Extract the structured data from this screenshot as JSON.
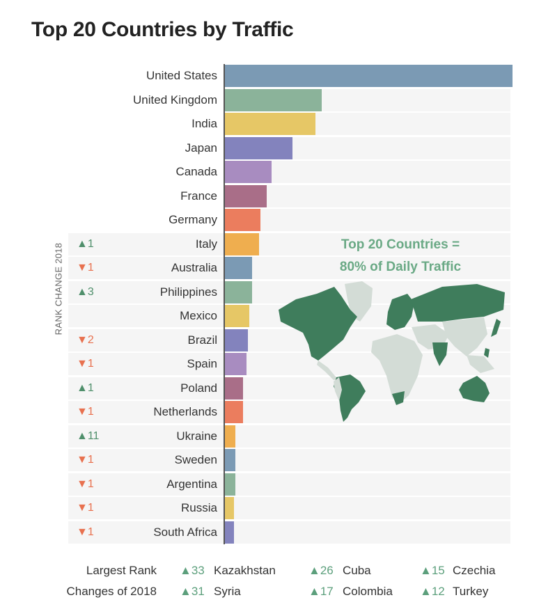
{
  "title": "Top 20 Countries by Traffic",
  "rank_axis_label": "RANK CHANGE 2018",
  "callout": {
    "line1": "Top 20 Countries =",
    "line2": "80% of Daily Traffic"
  },
  "colors": {
    "up": "#4f8f6b",
    "down": "#e8714f",
    "map_highlight": "#3f7d5c",
    "map_other": "#d3dcd6",
    "callout": "#6aa985"
  },
  "chart_data": {
    "type": "bar",
    "orientation": "horizontal",
    "title": "Top 20 Countries by Traffic",
    "value_unit": "relative (United States = 100, estimated from bar length)",
    "categories": [
      "United States",
      "United Kingdom",
      "India",
      "Japan",
      "Canada",
      "France",
      "Germany",
      "Italy",
      "Australia",
      "Philippines",
      "Mexico",
      "Brazil",
      "Spain",
      "Poland",
      "Netherlands",
      "Ukraine",
      "Sweden",
      "Argentina",
      "Russia",
      "South Africa"
    ],
    "values": [
      100,
      33.6,
      31.4,
      23.4,
      16.2,
      14.5,
      12.3,
      11.8,
      9.4,
      9.4,
      8.5,
      8.0,
      7.5,
      6.3,
      6.3,
      3.6,
      3.6,
      3.6,
      3.1,
      3.1
    ],
    "bar_colors": [
      "#7b9ab4",
      "#8bb39a",
      "#e6c766",
      "#8383bd",
      "#a88cc0",
      "#a96e88",
      "#eb7d5e",
      "#efae4f",
      "#7b9ab4",
      "#8bb39a",
      "#e6c766",
      "#8383bd",
      "#a88cc0",
      "#a96e88",
      "#eb7d5e",
      "#efae4f",
      "#7b9ab4",
      "#8bb39a",
      "#e6c766",
      "#8383bd"
    ],
    "rank_change": [
      null,
      null,
      null,
      null,
      null,
      null,
      null,
      "▲1",
      "▼1",
      "▲3",
      null,
      "▼2",
      "▼1",
      "▲1",
      "▼1",
      "▲11",
      "▼1",
      "▼1",
      "▼1",
      "▼1"
    ]
  },
  "largest_changes": {
    "label_line1": "Largest Rank",
    "label_line2": "Changes of 2018",
    "items": [
      {
        "change": "▲33",
        "country": "Kazakhstan"
      },
      {
        "change": "▲31",
        "country": "Syria"
      },
      {
        "change": "▲26",
        "country": "Cuba"
      },
      {
        "change": "▲17",
        "country": "Colombia"
      },
      {
        "change": "▲15",
        "country": "Czechia"
      },
      {
        "change": "▲12",
        "country": "Turkey"
      }
    ]
  }
}
